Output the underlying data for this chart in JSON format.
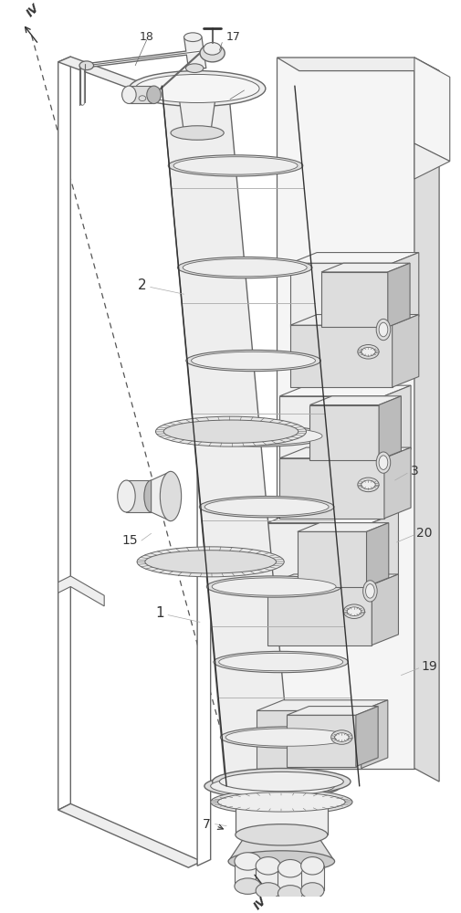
{
  "bg_color": "#ffffff",
  "line_color": "#666666",
  "line_color_dark": "#333333",
  "line_color_light": "#aaaaaa",
  "fill_white": "#ffffff",
  "fill_vlight": "#f5f5f5",
  "fill_light": "#eeeeee",
  "fill_mid": "#dddddd",
  "fill_dark": "#cccccc",
  "fill_darker": "#bbbbbb",
  "label_fontsize": 10,
  "figsize": [
    5.06,
    10.0
  ],
  "dpi": 100
}
